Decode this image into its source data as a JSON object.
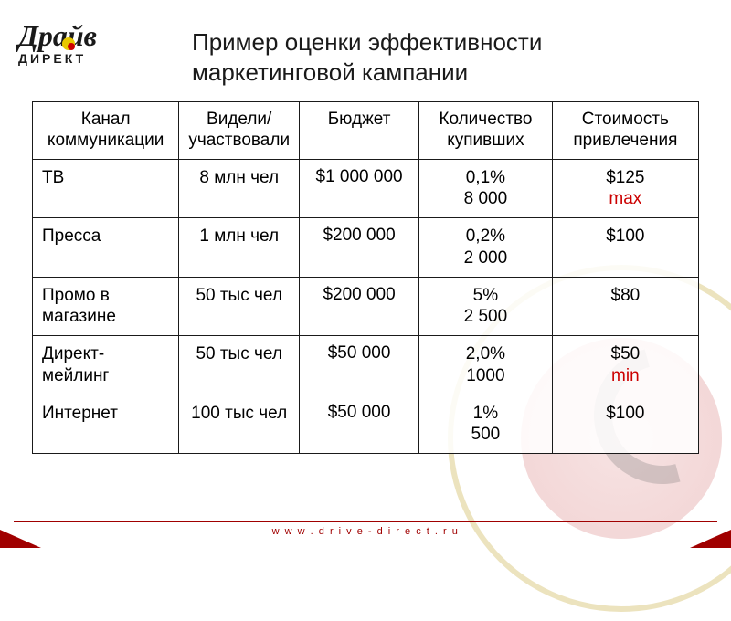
{
  "logo": {
    "top_text": "Драйв",
    "bottom_text": "ДИРЕКТ"
  },
  "title": "Пример оценки эффективности маркетинговой кампании",
  "table": {
    "columns": [
      "Канал коммуникации",
      "Видели/ участвовали",
      "Бюджет",
      "Количество купивших",
      "Стоимость привлечения"
    ],
    "column_widths": [
      "22%",
      "18%",
      "18%",
      "20%",
      "22%"
    ],
    "border_color": "#1a1a1a",
    "font_size": 19,
    "rows": [
      {
        "channel": "ТВ",
        "seen": "8 млн чел",
        "budget": "$1 000 000",
        "buyers_pct": "0,1%",
        "buyers_abs": "8 000",
        "cost": "$125",
        "tag": "max",
        "tag_color": "#cc0000"
      },
      {
        "channel": "Пресса",
        "seen": "1 млн чел",
        "budget": "$200 000",
        "buyers_pct": "0,2%",
        "buyers_abs": "2 000",
        "cost": "$100",
        "tag": "",
        "tag_color": ""
      },
      {
        "channel": "Промо в магазине",
        "seen": "50 тыс чел",
        "budget": "$200 000",
        "buyers_pct": "5%",
        "buyers_abs": "2 500",
        "cost": "$80",
        "tag": "",
        "tag_color": ""
      },
      {
        "channel": "Директ-мейлинг",
        "seen": "50 тыс чел",
        "budget": "$50 000",
        "buyers_pct": "2,0%",
        "buyers_abs": "1000",
        "cost": "$50",
        "tag": "min",
        "tag_color": "#cc0000"
      },
      {
        "channel": "Интернет",
        "seen": "100 тыс чел",
        "budget": "$50 000",
        "buyers_pct": "1%",
        "buyers_abs": "500",
        "cost": "$100",
        "tag": "",
        "tag_color": ""
      }
    ]
  },
  "footer": {
    "url": "w w w . d r i v e - d i r e c t . r u",
    "line_color": "#a00000",
    "text_color": "#a00000"
  },
  "styling": {
    "background_color": "#ffffff",
    "title_fontsize": 26,
    "title_color": "#1a1a1a",
    "red_accent": "#cc0000",
    "decor_ring_color": "#d9c87e",
    "decor_red_circle": "#d88080",
    "decor_swirl": "#6b6b6b"
  }
}
